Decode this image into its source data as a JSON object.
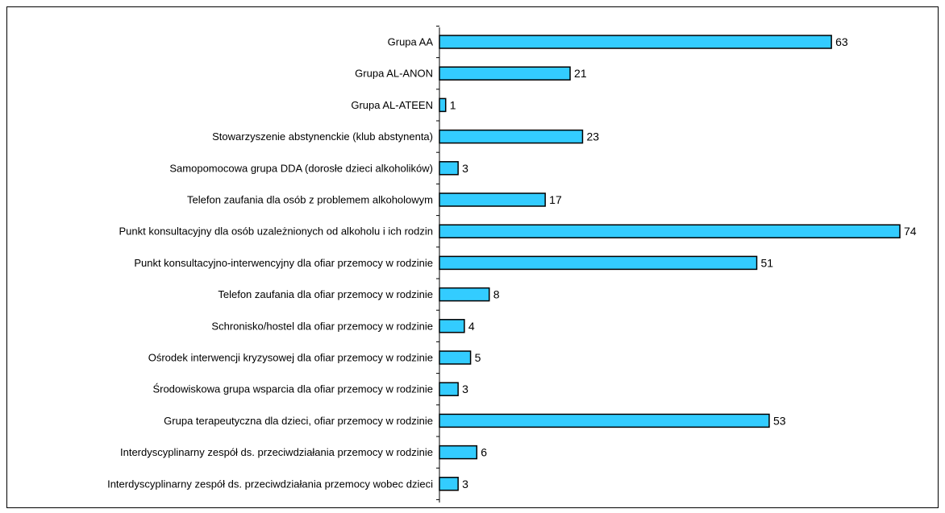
{
  "chart_data": {
    "type": "bar",
    "orientation": "horizontal",
    "categories": [
      "Grupa AA",
      "Grupa AL-ANON",
      "Grupa AL-ATEEN",
      "Stowarzyszenie abstynenckie (klub abstynenta)",
      "Samopomocowa grupa DDA (dorosłe dzieci alkoholików)",
      "Telefon zaufania dla osób z problemem alkoholowym",
      "Punkt konsultacyjny dla osób uzależnionych od alkoholu i ich rodzin",
      "Punkt konsultacyjno-interwencyjny dla ofiar przemocy w rodzinie",
      "Telefon zaufania dla ofiar przemocy w rodzinie",
      "Schronisko/hostel dla ofiar przemocy w rodzinie",
      "Ośrodek interwencji kryzysowej dla ofiar przemocy w rodzinie",
      "Środowiskowa grupa wsparcia dla ofiar przemocy w rodzinie",
      "Grupa terapeutyczna dla dzieci, ofiar przemocy w rodzinie",
      "Interdyscyplinarny zespół ds. przeciwdziałania przemocy w rodzinie",
      "Interdyscyplinarny zespół ds. przeciwdziałania przemocy wobec dzieci"
    ],
    "values": [
      63,
      21,
      1,
      23,
      3,
      17,
      74,
      51,
      8,
      4,
      5,
      3,
      53,
      6,
      3
    ],
    "value_labels": [
      "63",
      "21",
      "1",
      "23",
      "3",
      "17",
      "74",
      "51",
      "8",
      "4",
      "5",
      "3",
      "53",
      "6",
      "3"
    ],
    "xlim": [
      0,
      74
    ],
    "grid": false,
    "bar_color": "#33ccff",
    "bar_border_color": "#000000"
  }
}
